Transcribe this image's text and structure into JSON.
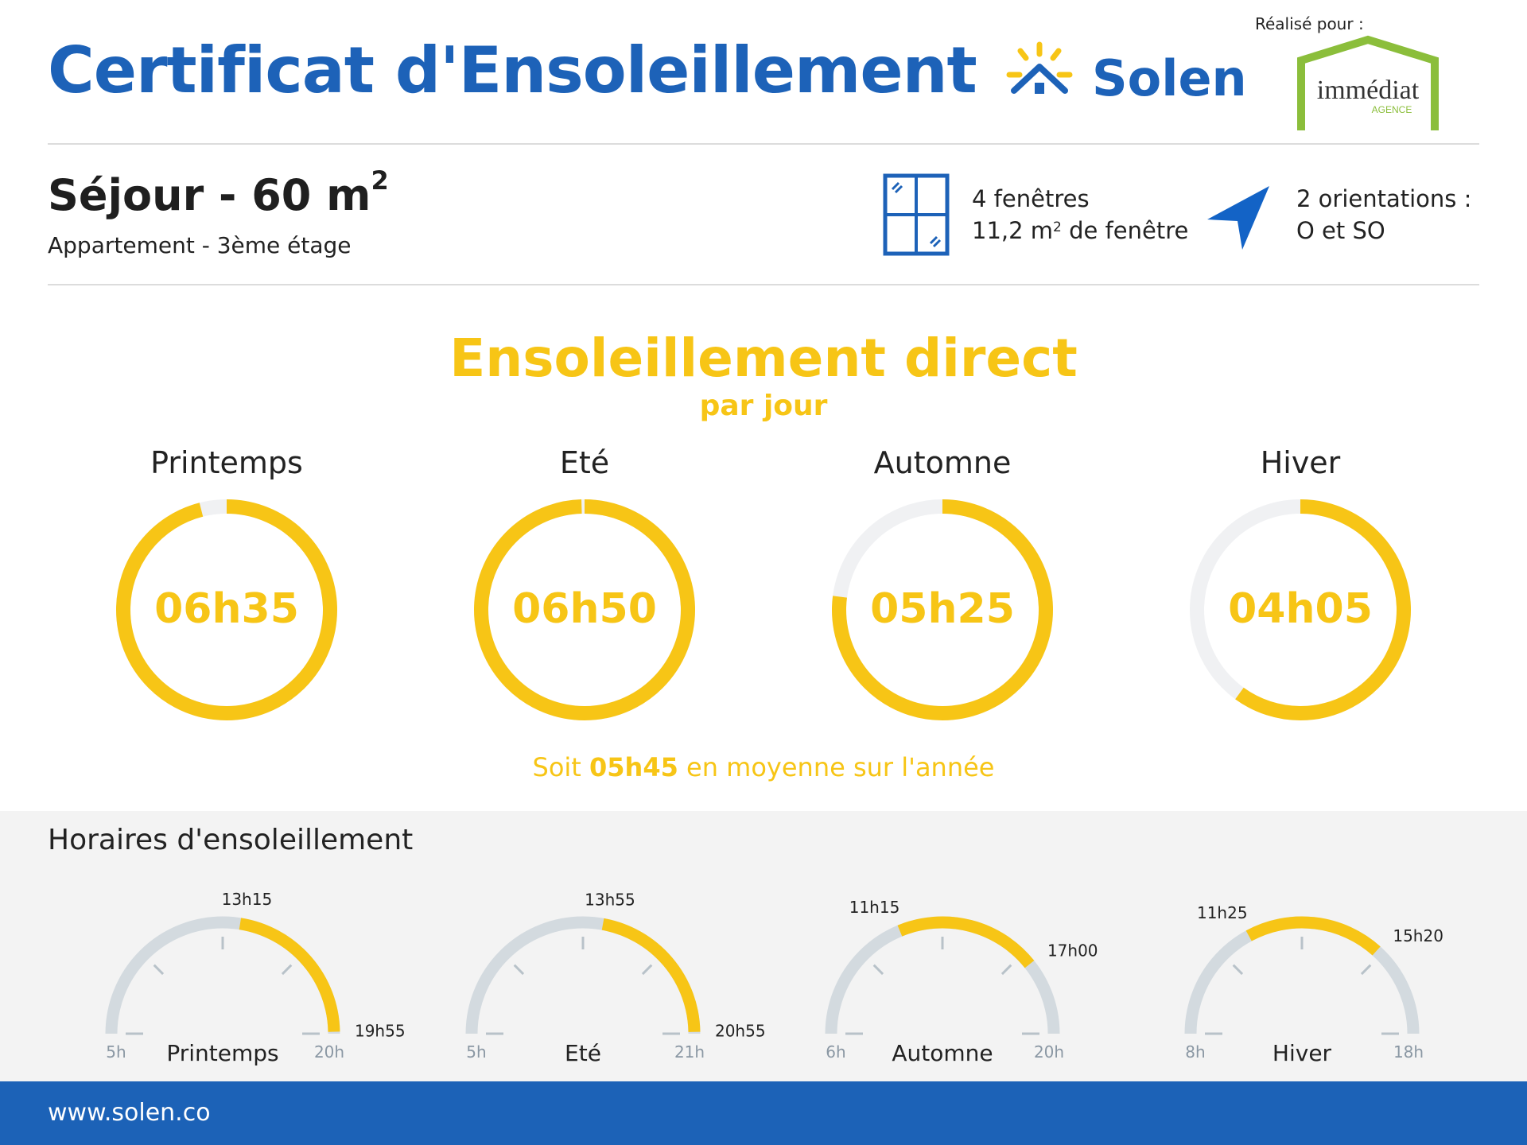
{
  "header": {
    "title": "Certificat d'Ensoleillement",
    "brand_name": "Solen",
    "realise_label": "Réalisé pour :",
    "agency_name": "immédiat",
    "agency_subtitle": "AGENCE"
  },
  "room": {
    "name": "Séjour - 60 m",
    "name_exponent": "2",
    "subtitle": "Appartement - 3ème étage",
    "windows_count": "4 fenêtres",
    "window_area": "11,2 m",
    "window_area_exponent": "2",
    "window_area_suffix": " de fenêtre",
    "orientations_line1": "2 orientations :",
    "orientations_line2": "O et SO"
  },
  "direct_sun": {
    "title": "Ensoleillement direct",
    "subtitle": "par jour",
    "average_prefix": "Soit ",
    "average_value": "05h45",
    "average_suffix": " en moyenne sur l'année",
    "seasons": [
      {
        "name": "Printemps",
        "duration": "06h35",
        "fraction": 0.96
      },
      {
        "name": "Eté",
        "duration": "06h50",
        "fraction": 0.995
      },
      {
        "name": "Automne",
        "duration": "05h25",
        "fraction": 0.77
      },
      {
        "name": "Hiver",
        "duration": "04h05",
        "fraction": 0.6
      }
    ]
  },
  "schedule": {
    "title": "Horaires d'ensoleillement",
    "gauges": [
      {
        "name": "Printemps",
        "range_start": "5h",
        "range_end": "20h",
        "start_hour": 5,
        "end_hour": 20,
        "sun_start": "13h15",
        "sun_end": "19h55",
        "sun_start_hour": 13.25,
        "sun_end_hour": 19.917
      },
      {
        "name": "Eté",
        "range_start": "5h",
        "range_end": "21h",
        "start_hour": 5,
        "end_hour": 21,
        "sun_start": "13h55",
        "sun_end": "20h55",
        "sun_start_hour": 13.917,
        "sun_end_hour": 20.917
      },
      {
        "name": "Automne",
        "range_start": "6h",
        "range_end": "20h",
        "start_hour": 6,
        "end_hour": 20,
        "sun_start": "11h15",
        "sun_end": "17h00",
        "sun_start_hour": 11.25,
        "sun_end_hour": 17.0
      },
      {
        "name": "Hiver",
        "range_start": "8h",
        "range_end": "18h",
        "start_hour": 8,
        "end_hour": 18,
        "sun_start": "11h25",
        "sun_end": "15h20",
        "sun_start_hour": 11.417,
        "sun_end_hour": 15.333
      }
    ]
  },
  "footer": {
    "url": "www.solen.co"
  },
  "colors": {
    "blue": "#1d62b8",
    "yellow": "#f7c516",
    "track": "#f0f1f3",
    "gauge_track": "#d3dadf",
    "agency_green": "#8bbe3b"
  }
}
